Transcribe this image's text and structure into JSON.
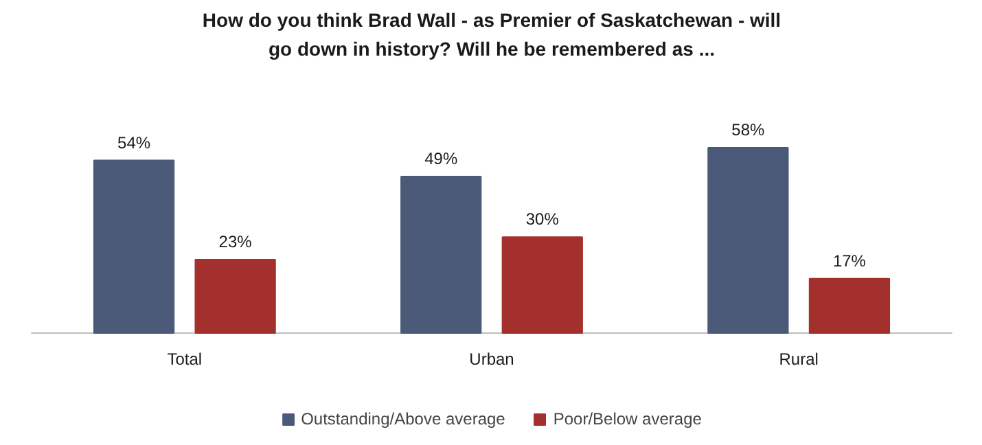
{
  "chart_data": {
    "type": "bar",
    "title": "How do you think Brad Wall - as Premier of Saskatchewan - will go down in history? Will he be remembered as ...",
    "categories": [
      "Total",
      "Urban",
      "Rural"
    ],
    "series": [
      {
        "name": "Outstanding/Above average",
        "color": "#4b5a78",
        "values": [
          54,
          49,
          58
        ],
        "value_labels": [
          "54%",
          "49%",
          "58%"
        ]
      },
      {
        "name": "Poor/Below average",
        "color": "#a3302c",
        "values": [
          23,
          30,
          17
        ],
        "value_labels": [
          "23%",
          "30%",
          "17%"
        ]
      }
    ],
    "legend": "bottom"
  }
}
